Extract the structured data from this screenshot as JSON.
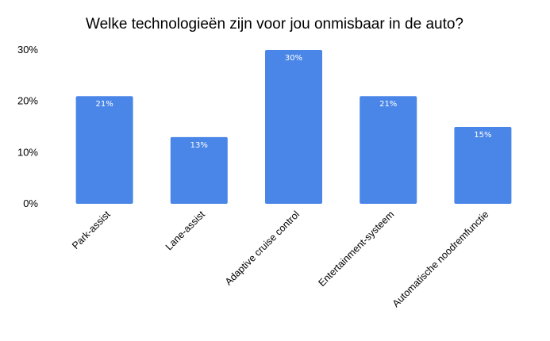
{
  "chart_data": {
    "type": "bar",
    "title": "Welke technologieën zijn voor jou onmisbaar in de auto?",
    "categories": [
      "Park-assist",
      "Lane-assist",
      "Adaptive cruise control",
      "Entertainment-systeem",
      "Automatische noodremfunctie"
    ],
    "values": [
      21,
      13,
      30,
      21,
      15
    ],
    "data_labels": [
      "21%",
      "13%",
      "30%",
      "21%",
      "15%"
    ],
    "yticks": [
      0,
      10,
      20,
      30
    ],
    "ytick_labels": [
      "0%",
      "10%",
      "20%",
      "30%"
    ],
    "ylim": [
      0,
      30
    ],
    "xlabel": "",
    "ylabel": "",
    "grid": false,
    "legend": "none",
    "bar_color": "#4a86e8"
  }
}
